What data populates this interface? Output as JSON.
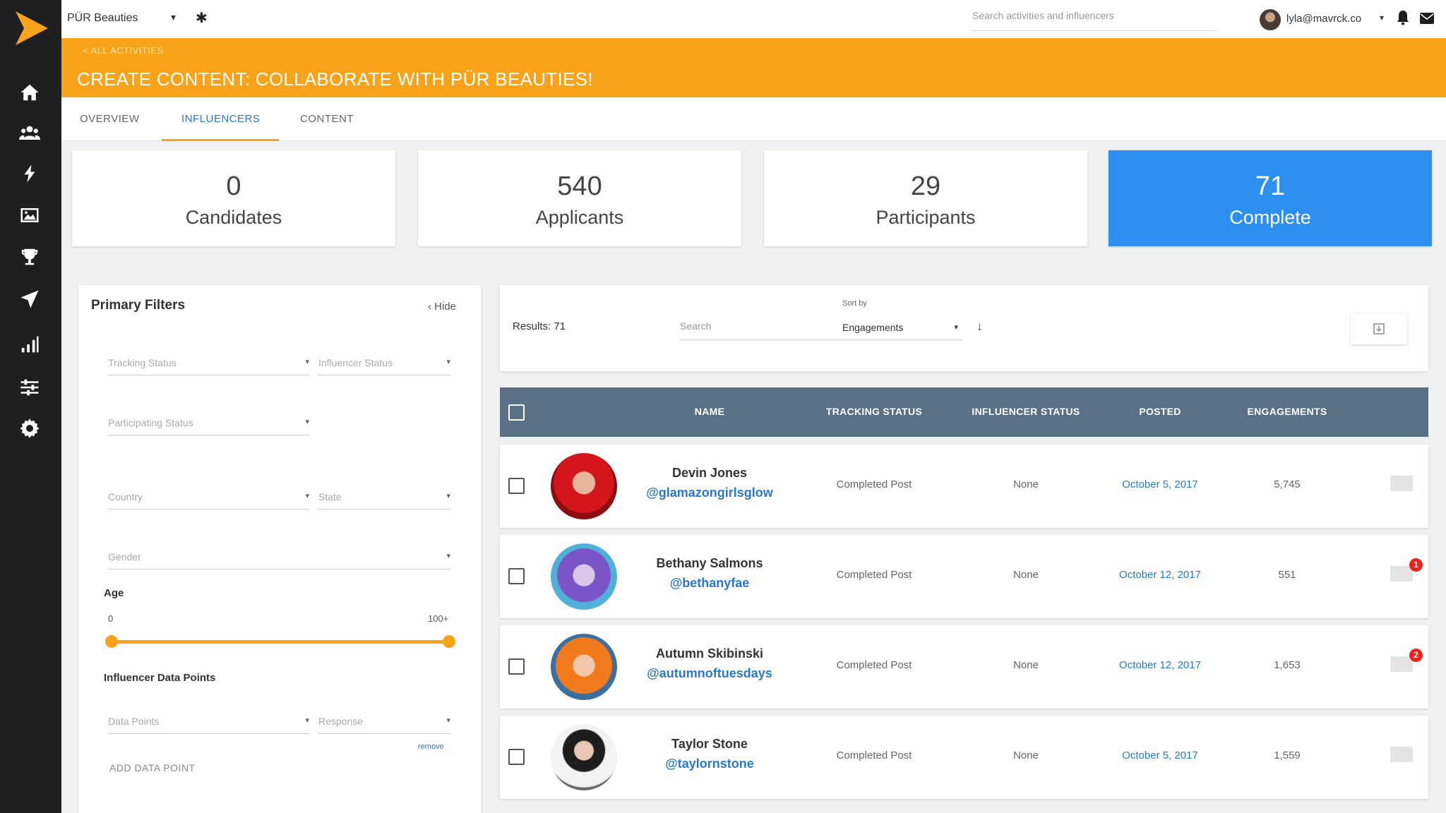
{
  "app": {
    "brand_name": "PÜR Beauties",
    "search_placeholder": "Search activities and influencers",
    "user_email": "lyla@mavrck.co"
  },
  "header": {
    "breadcrumb": "< ALL ACTIVITIES",
    "title": "CREATE CONTENT: COLLABORATE WITH PÜR BEAUTIES!"
  },
  "tabs": [
    {
      "label": "OVERVIEW",
      "active": false
    },
    {
      "label": "INFLUENCERS",
      "active": true
    },
    {
      "label": "CONTENT",
      "active": false
    }
  ],
  "stats": [
    {
      "value": "0",
      "label": "Candidates",
      "active": false
    },
    {
      "value": "540",
      "label": "Applicants",
      "active": false
    },
    {
      "value": "29",
      "label": "Participants",
      "active": false
    },
    {
      "value": "71",
      "label": "Complete",
      "active": true
    }
  ],
  "filters": {
    "title": "Primary Filters",
    "hide_label": "Hide",
    "tracking_status": "Tracking Status",
    "influencer_status": "Influencer Status",
    "participating_status": "Participating Status",
    "country": "Country",
    "state": "State",
    "gender": "Gender",
    "age_label": "Age",
    "age_min": "0",
    "age_max": "100+",
    "data_points_label": "Influencer Data Points",
    "data_points": "Data Points",
    "response": "Response",
    "remove_label": "remove",
    "add_data_point": "ADD DATA POINT"
  },
  "results": {
    "count_label": "Results: 71",
    "search_placeholder": "Search",
    "sort_label": "Sort by",
    "sort_value": "Engagements"
  },
  "table": {
    "columns": [
      "NAME",
      "TRACKING STATUS",
      "INFLUENCER STATUS",
      "POSTED",
      "ENGAGEMENTS"
    ],
    "rows": [
      {
        "name": "Devin Jones",
        "handle": "@glamazongirlsglow",
        "tracking": "Completed Post",
        "influencer": "None",
        "posted": "October 5, 2017",
        "engagements": "5,745",
        "badge": ""
      },
      {
        "name": "Bethany Salmons",
        "handle": "@bethanyfae",
        "tracking": "Completed Post",
        "influencer": "None",
        "posted": "October 12, 2017",
        "engagements": "551",
        "badge": "1"
      },
      {
        "name": "Autumn Skibinski",
        "handle": "@autumnoftuesdays",
        "tracking": "Completed Post",
        "influencer": "None",
        "posted": "October 12, 2017",
        "engagements": "1,653",
        "badge": "2"
      },
      {
        "name": "Taylor Stone",
        "handle": "@taylornstone",
        "tracking": "Completed Post",
        "influencer": "None",
        "posted": "October 5, 2017",
        "engagements": "1,559",
        "badge": ""
      }
    ]
  },
  "colors": {
    "accent_orange": "#f9a31b",
    "active_blue": "#2d8ff0",
    "link_blue": "#2a79c8",
    "table_header": "#5a7185",
    "sidebar": "#1e1f21"
  },
  "icons": [
    "logo-chevron-icon",
    "home-icon",
    "people-icon",
    "bolt-icon",
    "image-icon",
    "trophy-icon",
    "send-icon",
    "bar-chart-icon",
    "sliders-icon",
    "gear-icon",
    "bell-icon",
    "mail-icon",
    "chevron-left-icon",
    "arrow-down-icon",
    "export-icon",
    "message-icon"
  ]
}
